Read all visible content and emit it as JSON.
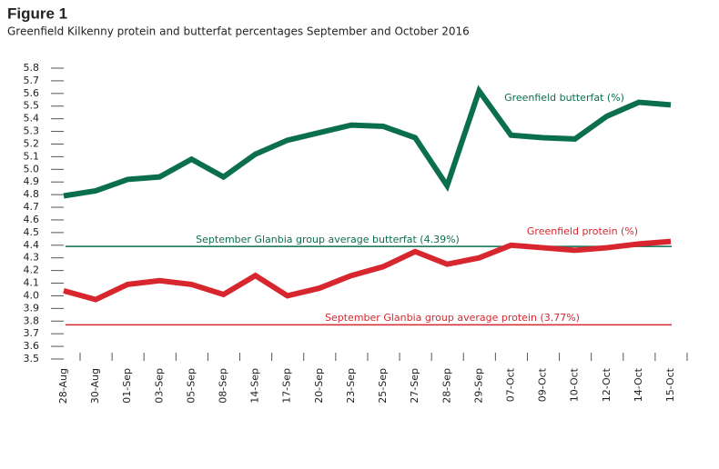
{
  "chart_data": {
    "type": "line",
    "title": "Figure 1",
    "subtitle": "Greenfield Kilkenny protein and butterfat percentages September and October 2016",
    "categories": [
      "28-Aug",
      "30-Aug",
      "01-Sep",
      "03-Sep",
      "05-Sep",
      "08-Sep",
      "14-Sep",
      "17-Sep",
      "20-Sep",
      "23-Sep",
      "25-Sep",
      "27-Sep",
      "28-Sep",
      "29-Sep",
      "07-Oct",
      "09-Oct",
      "10-Oct",
      "12-Oct",
      "14-Oct",
      "15-Oct"
    ],
    "series": [
      {
        "name": "Greenfield butterfat (%)",
        "color": "#0b6e4f",
        "values": [
          4.79,
          4.83,
          4.92,
          4.94,
          5.08,
          4.94,
          5.12,
          5.23,
          5.29,
          5.35,
          5.34,
          5.25,
          4.87,
          5.62,
          5.27,
          5.25,
          5.24,
          5.42,
          5.53,
          5.51
        ]
      },
      {
        "name": "Greenfield protein (%)",
        "color": "#d7262e",
        "values": [
          4.04,
          3.97,
          4.09,
          4.12,
          4.09,
          4.01,
          4.16,
          4.0,
          4.06,
          4.16,
          4.23,
          4.35,
          4.25,
          4.3,
          4.4,
          4.38,
          4.36,
          4.38,
          4.41,
          4.43
        ]
      }
    ],
    "reference_lines": [
      {
        "label": "September Glanbia group average butterfat (4.39%)",
        "value": 4.39,
        "color": "#0b6e4f"
      },
      {
        "label": "September Glanbia group average protein (3.77%)",
        "value": 3.77,
        "color": "#d7262e"
      }
    ],
    "ylim": [
      3.5,
      5.8
    ],
    "yticks": [
      3.5,
      3.6,
      3.7,
      3.8,
      3.9,
      {
        "value": 4,
        "label": "4.0"
      },
      4.1,
      4.2,
      4.3,
      4.4,
      4.5,
      4.6,
      4.7,
      4.8,
      4.9,
      {
        "value": 5,
        "label": "5.0"
      },
      5.1,
      5.2,
      5.3,
      5.4,
      5.5,
      5.6,
      5.7,
      5.8
    ]
  }
}
